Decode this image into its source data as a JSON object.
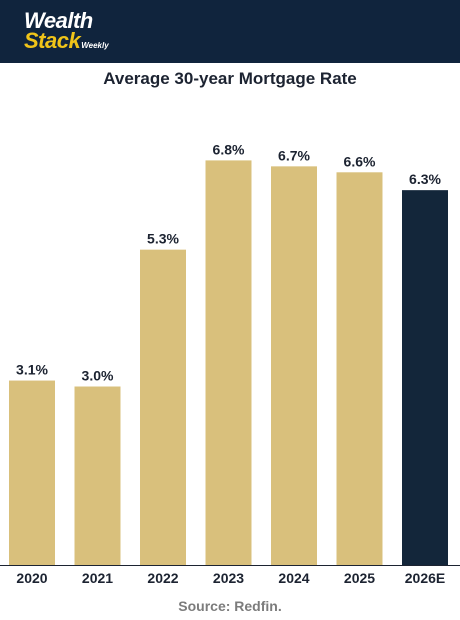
{
  "brand": {
    "line1": "Wealth",
    "line2": "Stack",
    "line2_suffix": "Weekly"
  },
  "source_text": "Source: Redfin.",
  "colors": {
    "header_bg": "#10243d",
    "brand_accent": "#f0c419",
    "bar_default": "#d9c07c",
    "bar_highlight": "#13263a",
    "text_dark": "#1c2331",
    "source_text": "#7c7c7c"
  },
  "chart_data": {
    "type": "bar",
    "title": "Average 30-year Mortgage Rate",
    "xlabel": "",
    "ylabel": "",
    "categories": [
      "2020",
      "2021",
      "2022",
      "2023",
      "2024",
      "2025",
      "2026E"
    ],
    "values": [
      3.1,
      3.0,
      5.3,
      6.8,
      6.7,
      6.6,
      6.3
    ],
    "value_labels": [
      "3.1%",
      "3.0%",
      "5.3%",
      "6.8%",
      "6.7%",
      "6.6%",
      "6.3%"
    ],
    "highlight_categories": [
      "2026E"
    ],
    "ylim": [
      0,
      7.4
    ],
    "grid": false,
    "legend": "none"
  }
}
